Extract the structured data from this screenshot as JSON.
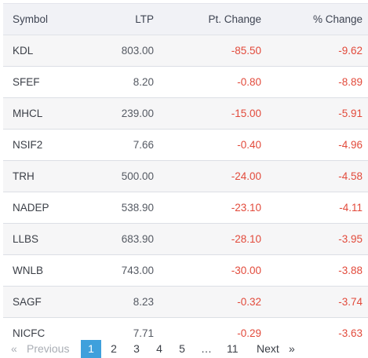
{
  "table": {
    "headers": {
      "symbol": "Symbol",
      "ltp": "LTP",
      "pt_change": "Pt. Change",
      "pct_change": "% Change"
    },
    "rows": [
      {
        "symbol": "KDL",
        "ltp": "803.00",
        "pt_change": "-85.50",
        "pct_change": "-9.62"
      },
      {
        "symbol": "SFEF",
        "ltp": "8.20",
        "pt_change": "-0.80",
        "pct_change": "-8.89"
      },
      {
        "symbol": "MHCL",
        "ltp": "239.00",
        "pt_change": "-15.00",
        "pct_change": "-5.91"
      },
      {
        "symbol": "NSIF2",
        "ltp": "7.66",
        "pt_change": "-0.40",
        "pct_change": "-4.96"
      },
      {
        "symbol": "TRH",
        "ltp": "500.00",
        "pt_change": "-24.00",
        "pct_change": "-4.58"
      },
      {
        "symbol": "NADEP",
        "ltp": "538.90",
        "pt_change": "-23.10",
        "pct_change": "-4.11"
      },
      {
        "symbol": "LLBS",
        "ltp": "683.90",
        "pt_change": "-28.10",
        "pct_change": "-3.95"
      },
      {
        "symbol": "WNLB",
        "ltp": "743.00",
        "pt_change": "-30.00",
        "pct_change": "-3.88"
      },
      {
        "symbol": "SAGF",
        "ltp": "8.23",
        "pt_change": "-0.32",
        "pct_change": "-3.74"
      },
      {
        "symbol": "NICFC",
        "ltp": "7.71",
        "pt_change": "-0.29",
        "pct_change": "-3.63"
      }
    ]
  },
  "pagination": {
    "first": "«",
    "previous": "Previous",
    "pages": [
      "1",
      "2",
      "3",
      "4",
      "5"
    ],
    "ellipsis": "…",
    "last_page": "11",
    "next": "Next",
    "end": "»",
    "current_page": "1"
  },
  "colors": {
    "negative": "#e24a3b",
    "active_page": "#3ea0dc",
    "header_bg": "#f1f2f6",
    "stripe_bg": "#f6f6f7"
  }
}
